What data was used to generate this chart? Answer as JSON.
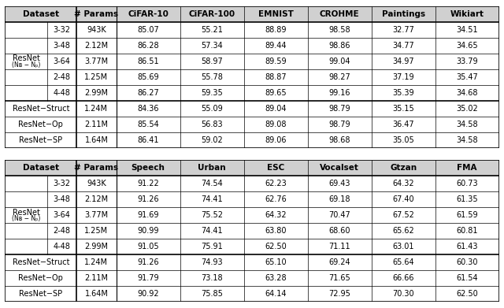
{
  "table1": {
    "col_headers": [
      "Dataset",
      "# Params",
      "CiFAR-10",
      "CiFAR-100",
      "EMNIST",
      "CROHME",
      "Paintings",
      "Wikiart"
    ],
    "resnet_label": "ResNet",
    "resnet_sub": "(Nʙ − Nₚ)",
    "resnet_rows": [
      [
        "3-32",
        "943K",
        "85.07",
        "55.21",
        "88.89",
        "98.58",
        "32.77",
        "34.51"
      ],
      [
        "3-48",
        "2.12M",
        "86.28",
        "57.34",
        "89.44",
        "98.86",
        "34.77",
        "34.65"
      ],
      [
        "3-64",
        "3.77M",
        "86.51",
        "58.97",
        "89.59",
        "99.04",
        "34.97",
        "33.79"
      ],
      [
        "2-48",
        "1.25M",
        "85.69",
        "55.78",
        "88.87",
        "98.27",
        "37.19",
        "35.47"
      ],
      [
        "4-48",
        "2.99M",
        "86.27",
        "59.35",
        "89.65",
        "99.16",
        "35.39",
        "34.68"
      ]
    ],
    "other_rows": [
      [
        "ResNet−Struct",
        "1.24M",
        "84.36",
        "55.09",
        "89.04",
        "98.79",
        "35.15",
        "35.02"
      ],
      [
        "ResNet−Op",
        "2.11M",
        "85.54",
        "56.83",
        "89.08",
        "98.79",
        "36.47",
        "34.58"
      ],
      [
        "ResNet−SP",
        "1.64M",
        "86.41",
        "59.02",
        "89.06",
        "98.68",
        "35.05",
        "34.58"
      ]
    ]
  },
  "table2": {
    "col_headers": [
      "Dataset",
      "# Params",
      "Speech",
      "Urban",
      "ESC",
      "Vocalset",
      "Gtzan",
      "FMA"
    ],
    "resnet_label": "ResNet",
    "resnet_sub": "(Nʙ − Nₚ)",
    "resnet_rows": [
      [
        "3-32",
        "943K",
        "91.22",
        "74.54",
        "62.23",
        "69.43",
        "64.32",
        "60.73"
      ],
      [
        "3-48",
        "2.12M",
        "91.26",
        "74.41",
        "62.76",
        "69.18",
        "67.40",
        "61.35"
      ],
      [
        "3-64",
        "3.77M",
        "91.69",
        "75.52",
        "64.32",
        "70.47",
        "67.52",
        "61.59"
      ],
      [
        "2-48",
        "1.25M",
        "90.99",
        "74.41",
        "63.80",
        "68.60",
        "65.62",
        "60.81"
      ],
      [
        "4-48",
        "2.99M",
        "91.05",
        "75.91",
        "62.50",
        "71.11",
        "63.01",
        "61.43"
      ]
    ],
    "other_rows": [
      [
        "ResNet−Struct",
        "1.24M",
        "91.26",
        "74.93",
        "65.10",
        "69.24",
        "65.64",
        "60.30"
      ],
      [
        "ResNet−Op",
        "2.11M",
        "91.79",
        "73.18",
        "63.28",
        "71.65",
        "66.66",
        "61.54"
      ],
      [
        "ResNet−SP",
        "1.64M",
        "90.92",
        "75.85",
        "64.14",
        "72.95",
        "70.30",
        "62.50"
      ]
    ]
  },
  "bg_color": "#ffffff",
  "header_bg": "#d0d0d0",
  "line_color": "#000000",
  "font_size": 7.0,
  "header_font_size": 7.5
}
